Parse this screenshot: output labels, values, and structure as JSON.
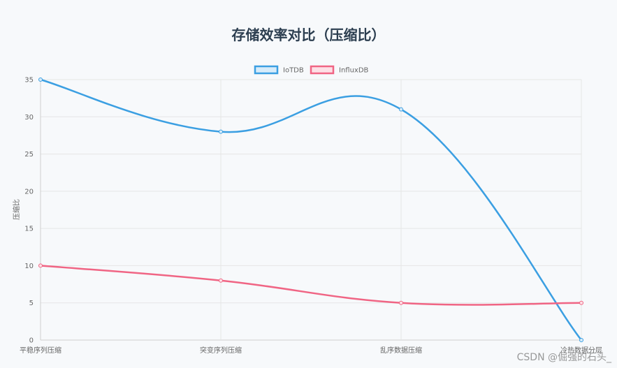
{
  "chart_data": {
    "type": "line",
    "title": "存储效率对比（压缩比）",
    "ylabel": "压缩比",
    "xlabel": "",
    "categories": [
      "平稳序列压缩",
      "突变序列压缩",
      "乱序数据压缩",
      "冷热数据分层"
    ],
    "ylim": [
      0,
      35
    ],
    "yticks": [
      0,
      5,
      10,
      15,
      20,
      25,
      30,
      35
    ],
    "grid": true,
    "legend_position": "top-center",
    "series": [
      {
        "name": "IoTDB",
        "values": [
          35,
          28,
          31,
          0
        ],
        "color": "#3b9fe2",
        "fill": "#d7ecfa"
      },
      {
        "name": "InfluxDB",
        "values": [
          10,
          8,
          5,
          5
        ],
        "color": "#f06584",
        "fill": "#fde0e6"
      }
    ]
  },
  "watermark": "CSDN @倔强的石头_"
}
